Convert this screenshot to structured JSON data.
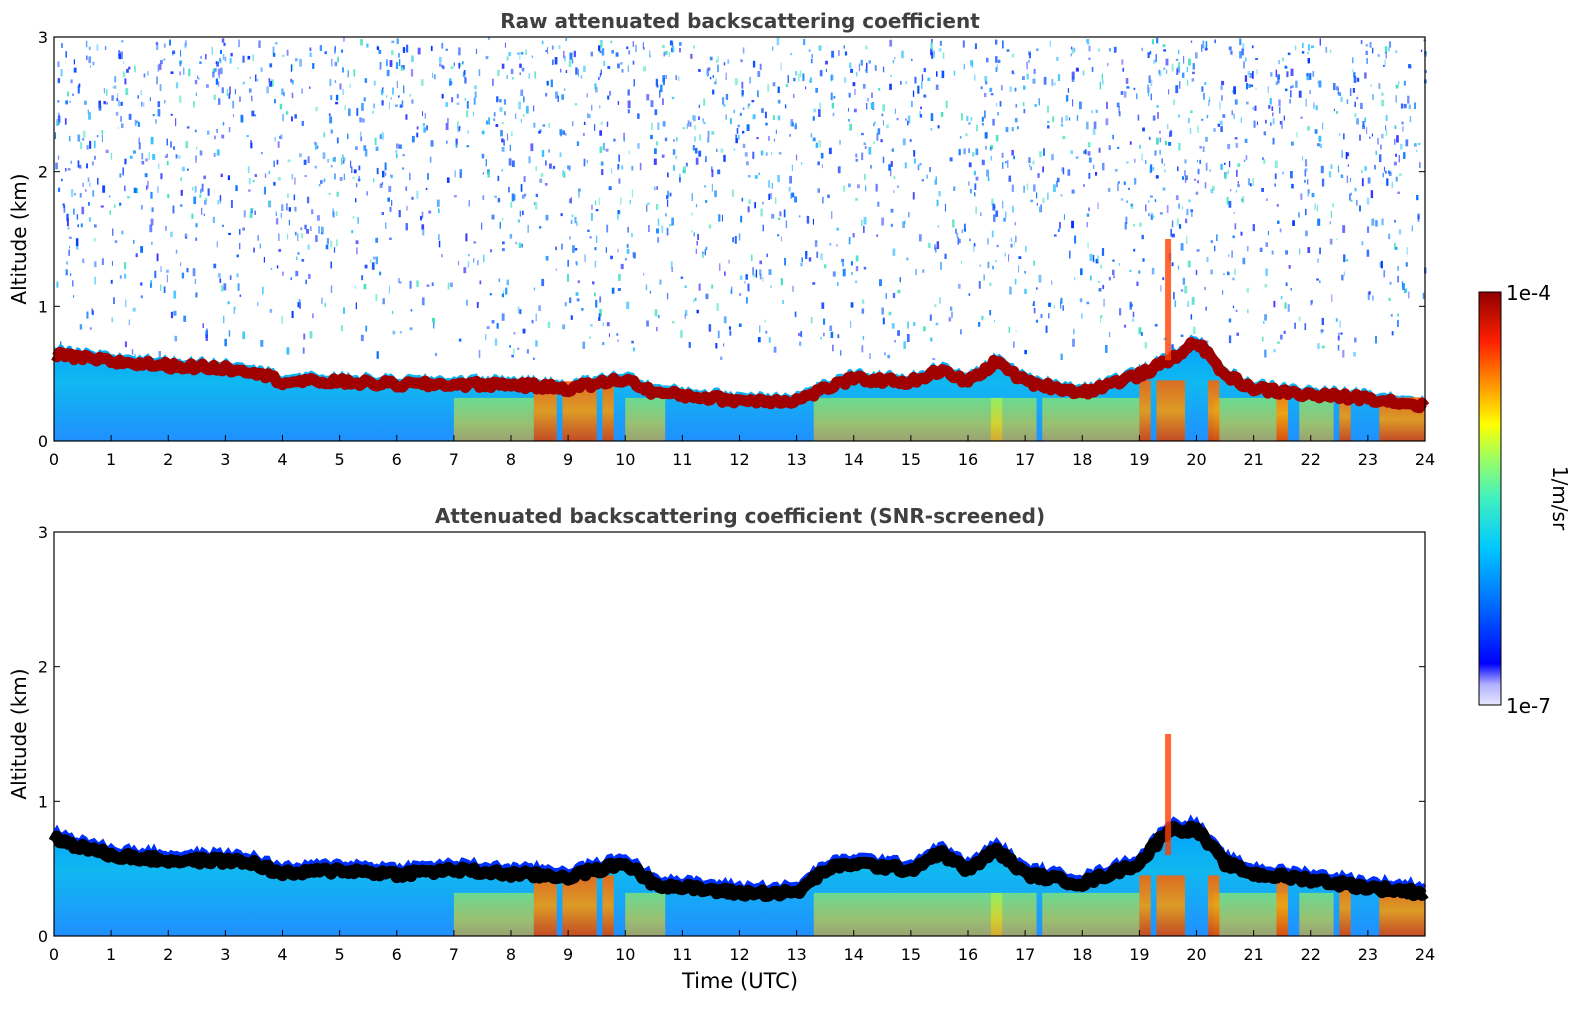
{
  "chart_data": [
    {
      "type": "heatmap",
      "title": "Raw attenuated backscattering coefficient",
      "xlabel": "",
      "ylabel": "Altitude (km)",
      "xlim": [
        0,
        24
      ],
      "ylim": [
        0,
        3
      ],
      "x_ticks": [
        "0",
        "1",
        "2",
        "3",
        "4",
        "5",
        "6",
        "7",
        "8",
        "9",
        "10",
        "11",
        "12",
        "13",
        "14",
        "15",
        "16",
        "17",
        "18",
        "19",
        "20",
        "21",
        "22",
        "23",
        "24"
      ],
      "y_ticks": [
        "0",
        "1",
        "2",
        "3"
      ],
      "layer_top_km": [
        [
          0,
          0.7
        ],
        [
          1,
          0.65
        ],
        [
          2,
          0.62
        ],
        [
          3,
          0.6
        ],
        [
          3.5,
          0.58
        ],
        [
          4,
          0.5
        ],
        [
          5,
          0.5
        ],
        [
          6,
          0.48
        ],
        [
          7,
          0.48
        ],
        [
          8,
          0.48
        ],
        [
          9,
          0.45
        ],
        [
          10,
          0.52
        ],
        [
          10.5,
          0.42
        ],
        [
          11,
          0.4
        ],
        [
          12,
          0.36
        ],
        [
          13,
          0.36
        ],
        [
          13.5,
          0.45
        ],
        [
          14,
          0.52
        ],
        [
          15,
          0.5
        ],
        [
          15.5,
          0.58
        ],
        [
          16,
          0.5
        ],
        [
          16.5,
          0.65
        ],
        [
          17,
          0.5
        ],
        [
          18,
          0.42
        ],
        [
          19,
          0.55
        ],
        [
          19.5,
          0.65
        ],
        [
          20,
          0.8
        ],
        [
          20.5,
          0.55
        ],
        [
          21,
          0.45
        ],
        [
          22,
          0.4
        ],
        [
          23,
          0.38
        ],
        [
          24,
          0.32
        ]
      ],
      "noise": true
    },
    {
      "type": "heatmap",
      "title": "Attenuated backscattering coefficient (SNR-screened)",
      "xlabel": "Time (UTC)",
      "ylabel": "Altitude (km)",
      "xlim": [
        0,
        24
      ],
      "ylim": [
        0,
        3
      ],
      "x_ticks": [
        "0",
        "1",
        "2",
        "3",
        "4",
        "5",
        "6",
        "7",
        "8",
        "9",
        "10",
        "11",
        "12",
        "13",
        "14",
        "15",
        "16",
        "17",
        "18",
        "19",
        "20",
        "21",
        "22",
        "23",
        "24"
      ],
      "y_ticks": [
        "0",
        "1",
        "2",
        "3"
      ],
      "layer_top_km": [
        [
          0,
          0.78
        ],
        [
          1,
          0.66
        ],
        [
          2,
          0.62
        ],
        [
          3,
          0.62
        ],
        [
          3.5,
          0.6
        ],
        [
          4,
          0.52
        ],
        [
          5,
          0.55
        ],
        [
          6,
          0.52
        ],
        [
          7,
          0.55
        ],
        [
          8,
          0.52
        ],
        [
          9,
          0.5
        ],
        [
          10,
          0.6
        ],
        [
          10.5,
          0.45
        ],
        [
          11,
          0.42
        ],
        [
          12,
          0.38
        ],
        [
          13,
          0.38
        ],
        [
          13.5,
          0.55
        ],
        [
          14,
          0.6
        ],
        [
          15,
          0.55
        ],
        [
          15.5,
          0.68
        ],
        [
          16,
          0.55
        ],
        [
          16.5,
          0.7
        ],
        [
          17,
          0.52
        ],
        [
          18,
          0.45
        ],
        [
          19,
          0.6
        ],
        [
          19.5,
          0.85
        ],
        [
          20,
          0.85
        ],
        [
          20.5,
          0.6
        ],
        [
          21,
          0.52
        ],
        [
          22,
          0.48
        ],
        [
          23,
          0.42
        ],
        [
          24,
          0.38
        ]
      ],
      "noise": false
    }
  ],
  "colorbar": {
    "label": "1/m/sr",
    "max_label": "1e-4",
    "min_label": "1e-7",
    "colors": [
      "#e8e8ff",
      "#c8c8ff",
      "#a0a0ff",
      "#0000ff",
      "#0040ff",
      "#0080ff",
      "#00b0ff",
      "#00d8e8",
      "#40f0c0",
      "#80ff80",
      "#c0ff40",
      "#ffff00",
      "#ffc000",
      "#ff8000",
      "#ff4000",
      "#e00000",
      "#900000"
    ]
  },
  "title_color": "#404040"
}
